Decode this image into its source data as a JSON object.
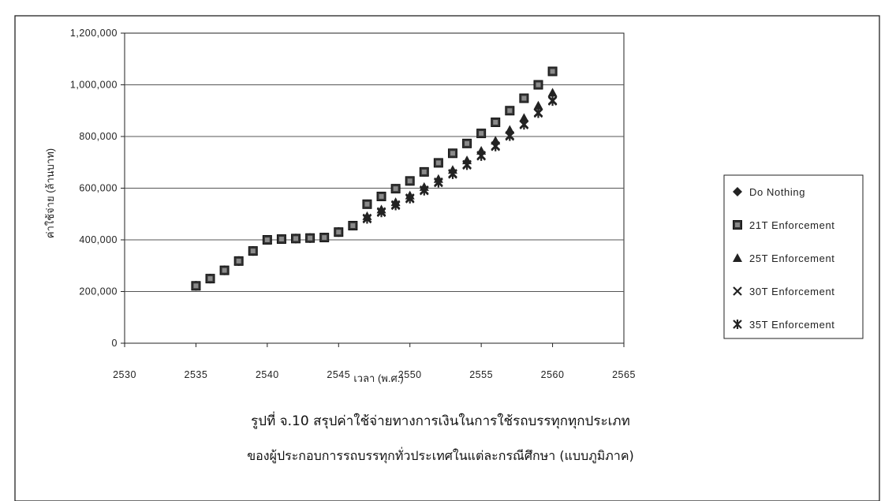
{
  "chart_data": {
    "type": "scatter",
    "xlabel": "เวลา (พ.ศ.)",
    "ylabel": "ค่าใช้จ่าย (ล้านบาท)",
    "xlim": [
      2530,
      2565
    ],
    "ylim": [
      0,
      1200000
    ],
    "x_ticks": [
      "2530",
      "2535",
      "2540",
      "2545",
      "2550",
      "2555",
      "2560",
      "2565"
    ],
    "y_ticks": [
      "0",
      "200,000",
      "400,000",
      "600,000",
      "800,000",
      "1,000,000",
      "1,200,000"
    ],
    "grid": "horizontal",
    "legend_position": "right",
    "x": [
      2535,
      2536,
      2537,
      2538,
      2539,
      2540,
      2541,
      2542,
      2543,
      2544,
      2545,
      2546,
      2547,
      2548,
      2549,
      2550,
      2551,
      2552,
      2553,
      2554,
      2555,
      2556,
      2557,
      2558,
      2559,
      2560
    ],
    "series": [
      {
        "name": "Do Nothing",
        "marker": "diamond",
        "values": [
          222000,
          250000,
          282000,
          318000,
          357000,
          400000,
          403000,
          405000,
          407000,
          409000,
          430000,
          455000,
          538000,
          568000,
          598000,
          628000,
          663000,
          698000,
          735000,
          773000,
          812000,
          855000,
          900000,
          948000,
          1000000,
          1052000
        ]
      },
      {
        "name": "21T Enforcement",
        "marker": "square",
        "values": [
          222000,
          250000,
          282000,
          318000,
          357000,
          400000,
          403000,
          405000,
          407000,
          409000,
          430000,
          455000,
          538000,
          568000,
          598000,
          628000,
          663000,
          698000,
          735000,
          773000,
          812000,
          855000,
          900000,
          948000,
          1000000,
          1052000
        ]
      },
      {
        "name": "25T Enforcement",
        "marker": "triangle",
        "values": [
          222000,
          250000,
          282000,
          318000,
          357000,
          400000,
          403000,
          405000,
          407000,
          409000,
          430000,
          455000,
          492000,
          518000,
          546000,
          572000,
          605000,
          636000,
          671000,
          708000,
          745000,
          784000,
          826000,
          872000,
          920000,
          970000
        ]
      },
      {
        "name": "30T Enforcement",
        "marker": "x",
        "values": [
          222000,
          250000,
          282000,
          318000,
          357000,
          400000,
          403000,
          405000,
          407000,
          409000,
          430000,
          455000,
          484000,
          509000,
          536000,
          562000,
          593000,
          624000,
          657000,
          692000,
          727000,
          764000,
          804000,
          848000,
          893000,
          940000
        ]
      },
      {
        "name": "35T Enforcement",
        "marker": "star",
        "values": [
          222000,
          250000,
          282000,
          318000,
          357000,
          400000,
          403000,
          405000,
          407000,
          409000,
          430000,
          455000,
          481000,
          506000,
          533000,
          559000,
          590000,
          621000,
          654000,
          689000,
          724000,
          761000,
          801000,
          845000,
          890000,
          937000
        ]
      }
    ]
  },
  "caption": {
    "line1": "รูปที่ จ.10  สรุปค่าใช้จ่ายทางการเงินในการใช้รถบรรทุกทุกประเภท",
    "line2": "ของผู้ประกอบการรถบรรทุกทั่วประเทศในแต่ละกรณีศึกษา (แบบภูมิภาค)"
  }
}
